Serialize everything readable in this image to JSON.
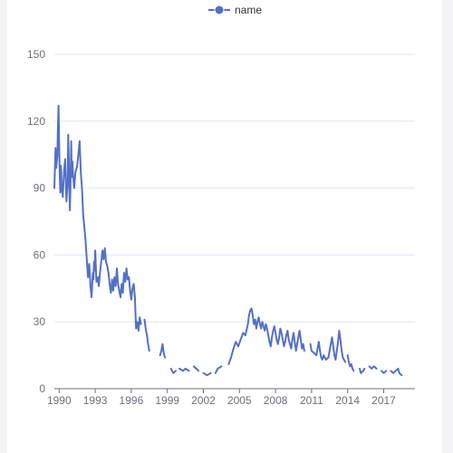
{
  "chart_data": {
    "type": "line",
    "legend": {
      "position": "top-center",
      "entries": [
        "name"
      ]
    },
    "colors": {
      "series": "#5470c6",
      "grid": "#e0e6f1",
      "axis": "#6e7079",
      "label": "#6e7079"
    },
    "xlim": [
      1989.6,
      2019.6
    ],
    "ylim": [
      0,
      150
    ],
    "y_ticks": [
      "0",
      "30",
      "60",
      "90",
      "120",
      "150"
    ],
    "x_ticks": [
      "1990",
      "1993",
      "1996",
      "1999",
      "2002",
      "2005",
      "2008",
      "2011",
      "2014",
      "2017"
    ],
    "grid": true,
    "series": [
      {
        "name": "name",
        "segments": [
          [
            [
              1989.6,
              90
            ],
            [
              1989.7,
              108
            ],
            [
              1989.75,
              99
            ],
            [
              1989.85,
              104
            ],
            [
              1989.9,
              118
            ],
            [
              1989.95,
              127
            ],
            [
              1990.0,
              110
            ],
            [
              1990.05,
              95
            ],
            [
              1990.1,
              88
            ],
            [
              1990.15,
              100
            ],
            [
              1990.2,
              92
            ],
            [
              1990.3,
              86
            ],
            [
              1990.4,
              97
            ],
            [
              1990.5,
              103
            ],
            [
              1990.6,
              84
            ],
            [
              1990.7,
              92
            ],
            [
              1990.75,
              114
            ],
            [
              1990.8,
              104
            ],
            [
              1990.85,
              88
            ],
            [
              1990.9,
              80
            ],
            [
              1990.95,
              93
            ],
            [
              1991.0,
              111
            ],
            [
              1991.05,
              95
            ],
            [
              1991.1,
              102
            ],
            [
              1991.15,
              96
            ],
            [
              1991.25,
              90
            ],
            [
              1991.35,
              97
            ],
            [
              1991.5,
              100
            ],
            [
              1991.65,
              108
            ],
            [
              1991.7,
              111
            ],
            [
              1991.8,
              97
            ],
            [
              1991.9,
              90
            ],
            [
              1992.0,
              78
            ],
            [
              1992.1,
              72
            ],
            [
              1992.2,
              66
            ],
            [
              1992.3,
              58
            ],
            [
              1992.4,
              50
            ],
            [
              1992.5,
              56
            ],
            [
              1992.55,
              52
            ],
            [
              1992.6,
              46
            ],
            [
              1992.7,
              41
            ],
            [
              1992.75,
              47
            ],
            [
              1992.8,
              52
            ],
            [
              1992.85,
              49
            ],
            [
              1992.9,
              57
            ],
            [
              1992.95,
              53
            ],
            [
              1993.0,
              62
            ],
            [
              1993.05,
              55
            ],
            [
              1993.1,
              48
            ],
            [
              1993.2,
              50
            ],
            [
              1993.3,
              46
            ],
            [
              1993.4,
              52
            ],
            [
              1993.5,
              57
            ],
            [
              1993.6,
              62
            ],
            [
              1993.7,
              58
            ],
            [
              1993.8,
              63
            ],
            [
              1993.9,
              57
            ],
            [
              1994.0,
              55
            ],
            [
              1994.1,
              52
            ],
            [
              1994.2,
              47
            ],
            [
              1994.3,
              43
            ],
            [
              1994.4,
              49
            ],
            [
              1994.5,
              44
            ],
            [
              1994.6,
              50
            ],
            [
              1994.7,
              46
            ],
            [
              1994.8,
              54
            ],
            [
              1994.9,
              47
            ],
            [
              1995.0,
              44
            ],
            [
              1995.1,
              41
            ],
            [
              1995.2,
              47
            ],
            [
              1995.3,
              43
            ],
            [
              1995.4,
              52
            ],
            [
              1995.5,
              48
            ],
            [
              1995.6,
              54
            ],
            [
              1995.7,
              49
            ],
            [
              1995.8,
              50
            ],
            [
              1995.9,
              44
            ],
            [
              1996.0,
              40
            ],
            [
              1996.1,
              45
            ],
            [
              1996.2,
              47
            ],
            [
              1996.3,
              41
            ],
            [
              1996.35,
              33
            ],
            [
              1996.4,
              27
            ],
            [
              1996.5,
              30
            ],
            [
              1996.6,
              26
            ],
            [
              1996.7,
              32
            ],
            [
              1996.8,
              29
            ]
          ],
          [
            [
              1997.1,
              31
            ],
            [
              1997.2,
              27
            ],
            [
              1997.3,
              24
            ],
            [
              1997.4,
              20
            ],
            [
              1997.5,
              17
            ]
          ],
          [
            [
              1998.4,
              15
            ],
            [
              1998.5,
              17
            ],
            [
              1998.6,
              20
            ],
            [
              1998.7,
              16
            ],
            [
              1998.8,
              14
            ]
          ],
          [
            [
              1999.3,
              9
            ],
            [
              1999.5,
              7
            ],
            [
              1999.7,
              8
            ]
          ],
          [
            [
              2000.0,
              9
            ],
            [
              2000.3,
              8
            ],
            [
              2000.5,
              9
            ],
            [
              2000.8,
              8
            ]
          ],
          [
            [
              2001.2,
              10
            ],
            [
              2001.4,
              9
            ],
            [
              2001.6,
              8
            ]
          ],
          [
            [
              2002.0,
              7
            ],
            [
              2002.3,
              6
            ],
            [
              2002.6,
              7
            ]
          ],
          [
            [
              2003.0,
              7
            ],
            [
              2003.2,
              9
            ],
            [
              2003.5,
              10
            ]
          ],
          [
            [
              2004.1,
              11
            ],
            [
              2004.3,
              14
            ],
            [
              2004.5,
              18
            ],
            [
              2004.7,
              21
            ],
            [
              2004.9,
              19
            ],
            [
              2005.1,
              22
            ],
            [
              2005.3,
              25
            ],
            [
              2005.5,
              24
            ],
            [
              2005.7,
              29
            ],
            [
              2005.8,
              33
            ],
            [
              2005.9,
              35
            ],
            [
              2006.0,
              36
            ],
            [
              2006.1,
              33
            ],
            [
              2006.2,
              29
            ],
            [
              2006.3,
              31
            ],
            [
              2006.4,
              27
            ],
            [
              2006.5,
              30
            ],
            [
              2006.6,
              32
            ],
            [
              2006.7,
              29
            ],
            [
              2006.8,
              27
            ],
            [
              2006.9,
              30
            ],
            [
              2007.0,
              28
            ],
            [
              2007.1,
              26
            ],
            [
              2007.2,
              29
            ],
            [
              2007.3,
              27
            ],
            [
              2007.4,
              24
            ],
            [
              2007.5,
              21
            ],
            [
              2007.6,
              19
            ],
            [
              2007.7,
              23
            ],
            [
              2007.8,
              26
            ],
            [
              2007.9,
              28
            ],
            [
              2008.0,
              25
            ],
            [
              2008.1,
              22
            ],
            [
              2008.2,
              20
            ],
            [
              2008.3,
              23
            ],
            [
              2008.4,
              27
            ],
            [
              2008.5,
              25
            ],
            [
              2008.6,
              22
            ],
            [
              2008.7,
              19
            ],
            [
              2008.8,
              21
            ],
            [
              2008.9,
              24
            ],
            [
              2009.0,
              26
            ],
            [
              2009.1,
              22
            ],
            [
              2009.2,
              20
            ],
            [
              2009.3,
              18
            ],
            [
              2009.4,
              22
            ],
            [
              2009.5,
              25
            ],
            [
              2009.6,
              21
            ],
            [
              2009.7,
              17
            ],
            [
              2009.8,
              20
            ],
            [
              2009.9,
              23
            ],
            [
              2010.0,
              26
            ],
            [
              2010.1,
              22
            ],
            [
              2010.2,
              18
            ],
            [
              2010.3,
              20
            ],
            [
              2010.4,
              17
            ]
          ],
          [
            [
              2010.9,
              20
            ],
            [
              2011.0,
              17
            ],
            [
              2011.2,
              16
            ],
            [
              2011.4,
              15
            ],
            [
              2011.5,
              18
            ],
            [
              2011.6,
              21
            ],
            [
              2011.7,
              17
            ],
            [
              2011.8,
              14
            ],
            [
              2011.9,
              13
            ],
            [
              2012.0,
              15
            ],
            [
              2012.2,
              13
            ],
            [
              2012.4,
              14
            ],
            [
              2012.5,
              17
            ],
            [
              2012.6,
              20
            ],
            [
              2012.7,
              23
            ],
            [
              2012.8,
              19
            ],
            [
              2012.9,
              15
            ],
            [
              2013.0,
              13
            ],
            [
              2013.1,
              17
            ],
            [
              2013.2,
              21
            ],
            [
              2013.3,
              26
            ],
            [
              2013.4,
              22
            ],
            [
              2013.5,
              17
            ],
            [
              2013.6,
              14
            ],
            [
              2013.7,
              13
            ],
            [
              2013.8,
              12
            ]
          ],
          [
            [
              2014.0,
              15
            ],
            [
              2014.1,
              12
            ],
            [
              2014.2,
              10
            ],
            [
              2014.3,
              11
            ],
            [
              2014.4,
              9
            ],
            [
              2014.5,
              8
            ]
          ],
          [
            [
              2015.0,
              9
            ],
            [
              2015.1,
              7
            ],
            [
              2015.3,
              8
            ],
            [
              2015.4,
              9
            ]
          ],
          [
            [
              2015.8,
              10
            ],
            [
              2016.0,
              9
            ],
            [
              2016.2,
              10
            ],
            [
              2016.4,
              9
            ]
          ],
          [
            [
              2016.8,
              8
            ],
            [
              2017.0,
              7
            ],
            [
              2017.2,
              8
            ]
          ],
          [
            [
              2017.6,
              8
            ],
            [
              2017.8,
              7
            ],
            [
              2018.0,
              8
            ],
            [
              2018.2,
              9
            ],
            [
              2018.3,
              7
            ],
            [
              2018.5,
              6
            ]
          ]
        ]
      }
    ]
  }
}
